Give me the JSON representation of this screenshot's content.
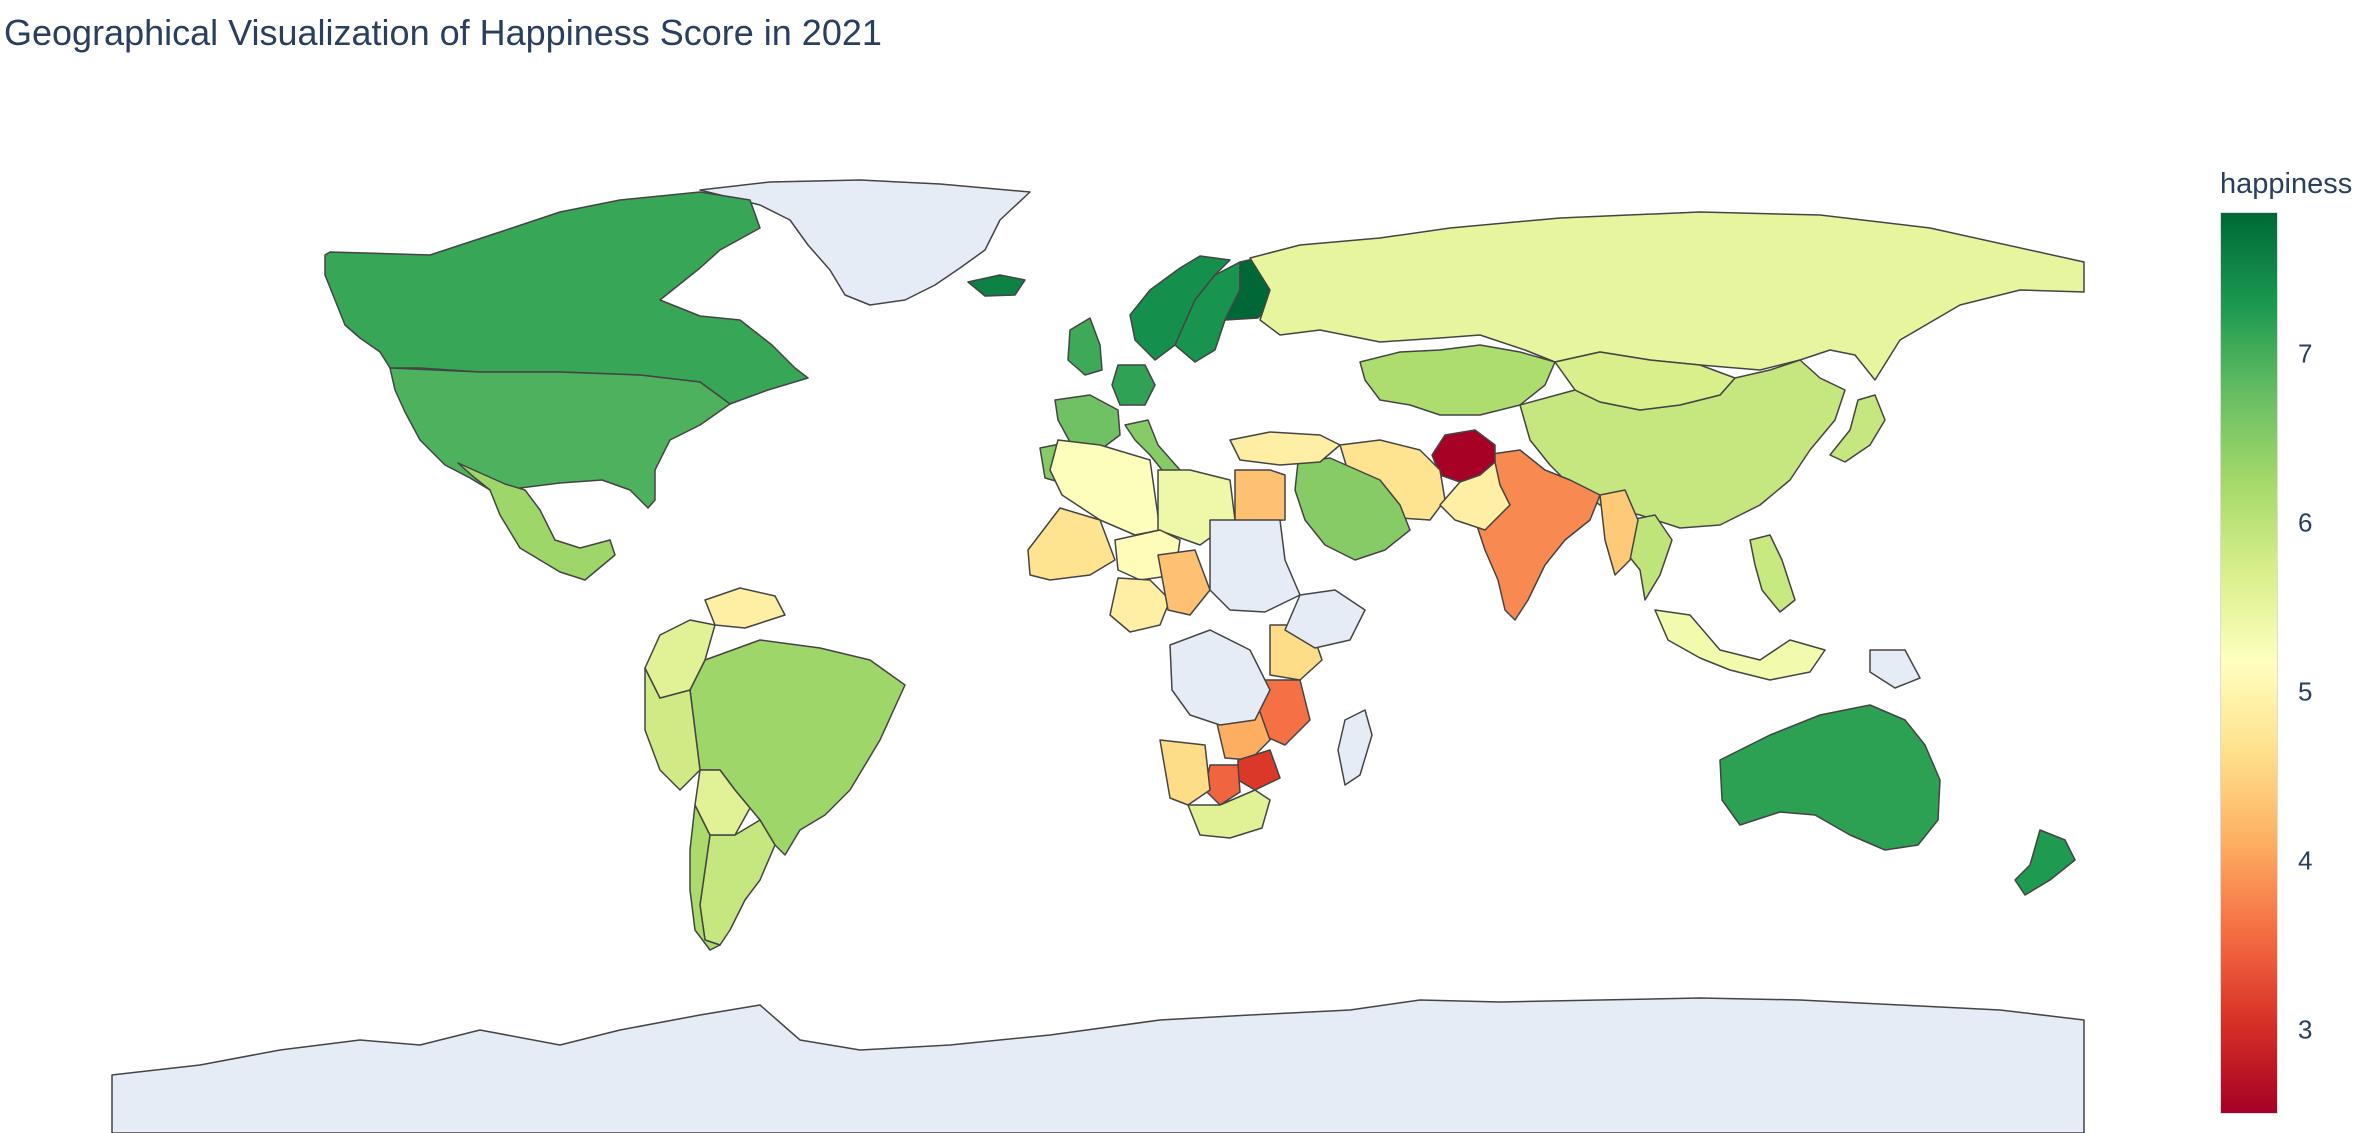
{
  "title": "Geographical Visualization of Happiness Score in 2021",
  "chart_data": {
    "type": "choropleth",
    "projection": "equirectangular",
    "z_range": [
      2.5,
      7.84
    ],
    "colorscale": [
      "#a50026",
      "#d73027",
      "#f46d43",
      "#fdae61",
      "#fee08b",
      "#ffffbf",
      "#d9ef8b",
      "#a6d96a",
      "#66bd63",
      "#1a9850",
      "#006837"
    ],
    "no_data_color": "#e5ecf6",
    "colorbar": {
      "title": "happiness",
      "ticks": [
        3,
        4,
        5,
        6,
        7
      ]
    },
    "regions": [
      {
        "name": "Greenland",
        "value": null
      },
      {
        "name": "Antarctica",
        "value": null
      },
      {
        "name": "Canada",
        "value": 7.1
      },
      {
        "name": "United States",
        "value": 6.95
      },
      {
        "name": "Mexico",
        "value": 6.3
      },
      {
        "name": "Brazil",
        "value": 6.3
      },
      {
        "name": "Argentina",
        "value": 5.9
      },
      {
        "name": "Chile",
        "value": 6.2
      },
      {
        "name": "Peru",
        "value": 5.8
      },
      {
        "name": "Colombia",
        "value": 5.6
      },
      {
        "name": "Venezuela",
        "value": 4.9
      },
      {
        "name": "Bolivia",
        "value": 5.6
      },
      {
        "name": "Iceland",
        "value": 7.55
      },
      {
        "name": "Norway",
        "value": 7.4
      },
      {
        "name": "Sweden",
        "value": 7.35
      },
      {
        "name": "Finland",
        "value": 7.84
      },
      {
        "name": "United Kingdom",
        "value": 7.06
      },
      {
        "name": "France",
        "value": 6.7
      },
      {
        "name": "Germany",
        "value": 7.16
      },
      {
        "name": "Spain",
        "value": 6.5
      },
      {
        "name": "Italy",
        "value": 6.5
      },
      {
        "name": "Russia",
        "value": 5.5
      },
      {
        "name": "Kazakhstan",
        "value": 6.15
      },
      {
        "name": "China",
        "value": 5.9
      },
      {
        "name": "Mongolia",
        "value": 5.7
      },
      {
        "name": "Japan",
        "value": 5.9
      },
      {
        "name": "India",
        "value": 3.8
      },
      {
        "name": "Afghanistan",
        "value": 2.52
      },
      {
        "name": "Iran",
        "value": 4.7
      },
      {
        "name": "Pakistan",
        "value": 4.9
      },
      {
        "name": "Saudi Arabia",
        "value": 6.5
      },
      {
        "name": "Turkey",
        "value": 4.9
      },
      {
        "name": "Egypt",
        "value": 4.3
      },
      {
        "name": "Algeria",
        "value": 5.2
      },
      {
        "name": "Libya",
        "value": 5.4
      },
      {
        "name": "Mali",
        "value": 4.7
      },
      {
        "name": "Niger",
        "value": 5.1
      },
      {
        "name": "Nigeria",
        "value": 4.9
      },
      {
        "name": "Chad",
        "value": 4.3
      },
      {
        "name": "Kenya",
        "value": 4.6
      },
      {
        "name": "Tanzania",
        "value": 3.6
      },
      {
        "name": "Zambia",
        "value": 4.1
      },
      {
        "name": "Zimbabwe",
        "value": 3.1
      },
      {
        "name": "Botswana",
        "value": 3.5
      },
      {
        "name": "Namibia",
        "value": 4.6
      },
      {
        "name": "South Africa",
        "value": 5.6
      },
      {
        "name": "Australia",
        "value": 7.18
      },
      {
        "name": "New Zealand",
        "value": 7.28
      },
      {
        "name": "Indonesia",
        "value": 5.35
      },
      {
        "name": "Philippines",
        "value": 5.88
      },
      {
        "name": "Thailand",
        "value": 5.98
      },
      {
        "name": "Myanmar",
        "value": 4.4
      },
      {
        "name": "Papua New Guinea",
        "value": null
      },
      {
        "name": "Madagascar",
        "value": null
      },
      {
        "name": "Sudan",
        "value": null
      },
      {
        "name": "Ethiopia",
        "value": null
      },
      {
        "name": "Congo (Kinshasa)",
        "value": null
      }
    ]
  }
}
